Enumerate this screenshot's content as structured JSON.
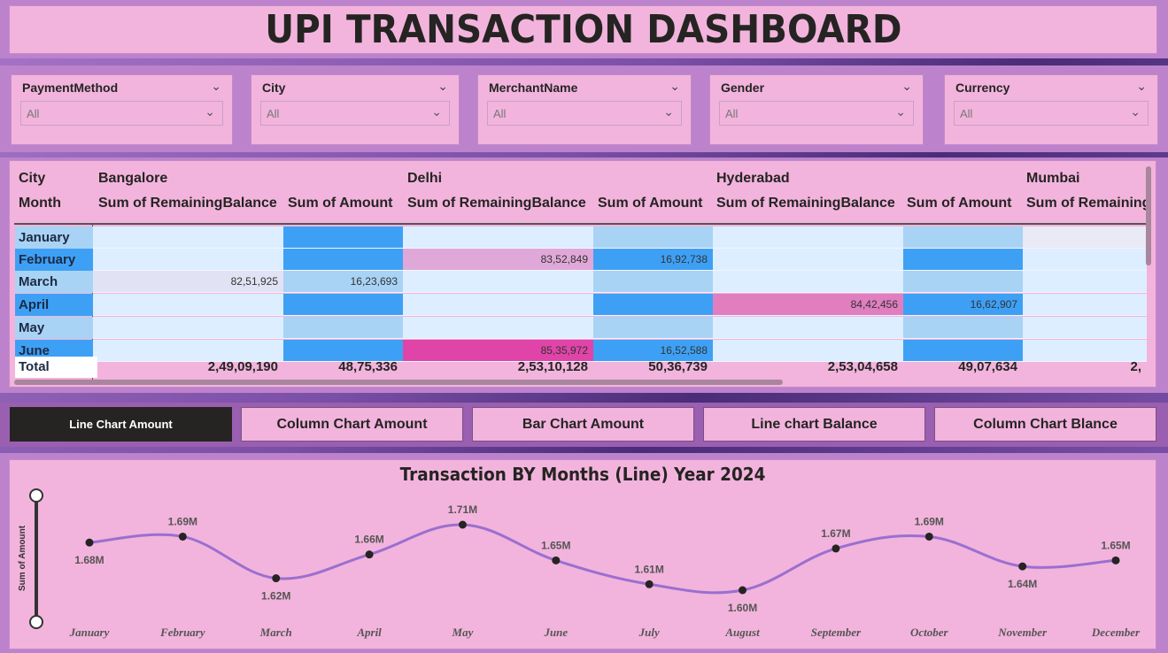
{
  "title": "UPI TRANSACTION DASHBOARD",
  "slicers": [
    {
      "label": "PaymentMethod",
      "value": "All"
    },
    {
      "label": "City",
      "value": "All"
    },
    {
      "label": "MerchantName",
      "value": "All"
    },
    {
      "label": "Gender",
      "value": "All"
    },
    {
      "label": "Currency",
      "value": "All"
    }
  ],
  "matrix": {
    "row_header": "City",
    "col_header": "Month",
    "cities": [
      "Bangalore",
      "Delhi",
      "Hyderabad",
      "Mumbai"
    ],
    "measures": [
      "Sum of RemainingBalance",
      "Sum of Amount",
      "Sum of RemainingBalance",
      "Sum of Amount",
      "Sum of RemainingBalance",
      "Sum of Amount",
      "Sum of Remaining"
    ],
    "months": [
      "January",
      "February",
      "March",
      "April",
      "May",
      "June"
    ],
    "values": [
      [
        "",
        "",
        "",
        "",
        "",
        "",
        ""
      ],
      [
        "",
        "",
        "83,52,849",
        "16,92,738",
        "",
        "",
        ""
      ],
      [
        "82,51,925",
        "16,23,693",
        "",
        "",
        "",
        "",
        ""
      ],
      [
        "",
        "",
        "",
        "",
        "84,42,456",
        "16,62,907",
        ""
      ],
      [
        "",
        "",
        "",
        "",
        "",
        "",
        ""
      ],
      [
        "",
        "",
        "85,35,972",
        "16,52,588",
        "",
        "",
        ""
      ]
    ],
    "total_label": "Total",
    "totals": [
      "2,49,09,190",
      "48,75,336",
      "2,53,10,128",
      "50,36,739",
      "2,53,04,658",
      "49,07,634",
      "2,"
    ]
  },
  "tabs": [
    {
      "label": "Line Chart Amount",
      "active": true
    },
    {
      "label": "Column Chart Amount",
      "active": false
    },
    {
      "label": "Bar Chart Amount",
      "active": false
    },
    {
      "label": "Line chart Balance",
      "active": false
    },
    {
      "label": "Column Chart Blance",
      "active": false
    }
  ],
  "chart_data": {
    "type": "line",
    "title": "Transaction BY Months (Line) Year 2024",
    "ylabel": "Sum of Amount",
    "xlabel": "",
    "categories": [
      "January",
      "February",
      "March",
      "April",
      "May",
      "June",
      "July",
      "August",
      "September",
      "October",
      "November",
      "December"
    ],
    "values": [
      1.68,
      1.69,
      1.62,
      1.66,
      1.71,
      1.65,
      1.61,
      1.6,
      1.67,
      1.69,
      1.64,
      1.65
    ],
    "labels": [
      "1.68M",
      "1.69M",
      "1.62M",
      "1.66M",
      "1.71M",
      "1.65M",
      "1.61M",
      "1.60M",
      "1.67M",
      "1.69M",
      "1.64M",
      "1.65M"
    ],
    "unit": "M",
    "line_color": "#9b6fd0",
    "grid": false,
    "legend": "none"
  }
}
